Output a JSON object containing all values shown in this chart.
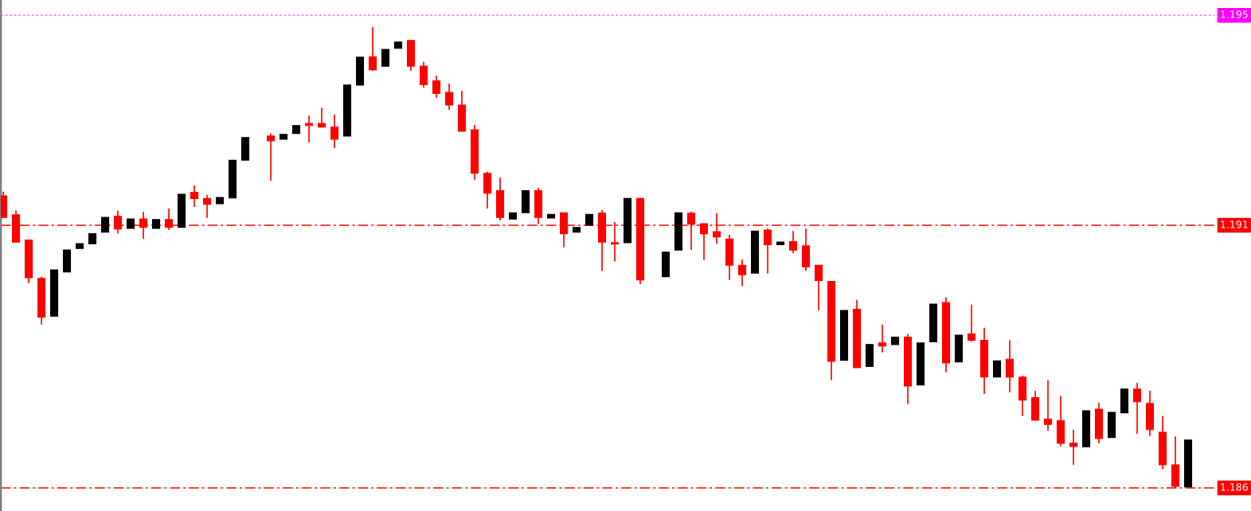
{
  "chart_data": {
    "type": "candlestick",
    "categories": [
      null,
      null,
      null,
      null,
      null,
      null,
      null,
      null,
      null,
      null,
      null,
      null,
      null,
      null,
      null,
      null,
      null,
      null,
      null,
      null,
      null,
      null,
      null,
      null,
      null,
      null,
      null,
      null,
      null,
      null,
      null,
      null,
      null,
      null,
      null,
      null,
      null,
      null,
      null,
      null,
      null,
      null,
      null,
      null,
      null,
      null,
      null,
      null,
      null,
      null,
      null,
      null,
      null,
      null,
      null,
      null,
      null,
      null,
      null,
      null,
      null,
      null,
      null,
      null,
      null,
      null,
      null,
      null,
      null,
      null,
      null,
      null,
      null,
      null,
      null,
      null,
      null,
      null,
      null,
      null,
      null,
      null,
      null,
      null,
      null,
      null,
      null,
      null,
      null,
      null,
      null,
      null,
      null,
      null
    ],
    "ohlc": [
      [
        1.19156,
        1.19164,
        1.19115,
        1.19115
      ],
      [
        1.1912,
        1.19128,
        1.19068,
        1.19068
      ],
      [
        1.19072,
        1.19073,
        1.1899,
        1.19
      ],
      [
        1.18999,
        1.19002,
        1.18911,
        1.18925
      ],
      [
        1.18927,
        1.19015,
        1.18927,
        1.19015
      ],
      [
        1.19011,
        1.19053,
        1.19011,
        1.19053
      ],
      [
        1.19056,
        1.19065,
        1.19056,
        1.19065
      ],
      [
        1.19065,
        1.19084,
        1.19065,
        1.19084
      ],
      [
        1.19087,
        1.19115,
        1.19087,
        1.19115
      ],
      [
        1.19117,
        1.19128,
        1.19084,
        1.19093
      ],
      [
        1.19094,
        1.19112,
        1.19094,
        1.19112
      ],
      [
        1.19112,
        1.19126,
        1.19074,
        1.19096
      ],
      [
        1.19094,
        1.19111,
        1.19094,
        1.19111
      ],
      [
        1.19111,
        1.19132,
        1.19091,
        1.19096
      ],
      [
        1.19096,
        1.19159,
        1.19096,
        1.19159
      ],
      [
        1.19163,
        1.19176,
        1.19135,
        1.19151
      ],
      [
        1.19151,
        1.19158,
        1.19114,
        1.1914
      ],
      [
        1.19141,
        1.19153,
        1.19141,
        1.19153
      ],
      [
        1.19152,
        1.19224,
        1.19152,
        1.19224
      ],
      [
        1.19224,
        1.19267,
        1.19224,
        1.19267
      ],
      null,
      [
        1.1927,
        1.19275,
        1.19185,
        1.19261
      ],
      [
        1.19264,
        1.19273,
        1.19264,
        1.19273
      ],
      [
        1.19275,
        1.1929,
        1.19275,
        1.1929
      ],
      [
        1.19294,
        1.19309,
        1.19258,
        1.1929
      ],
      [
        1.19294,
        1.19324,
        1.19287,
        1.19287
      ],
      [
        1.19287,
        1.19311,
        1.19247,
        1.19264
      ],
      [
        1.1927,
        1.19367,
        1.1927,
        1.19367
      ],
      [
        1.19367,
        1.1942,
        1.19367,
        1.1942
      ],
      [
        1.19421,
        1.19478,
        1.19394,
        1.19396
      ],
      [
        1.19403,
        1.19435,
        1.19403,
        1.19435
      ],
      [
        1.19437,
        1.19449,
        1.19437,
        1.19449
      ],
      [
        1.19452,
        1.19452,
        1.19394,
        1.19403
      ],
      [
        1.19403,
        1.19411,
        1.19362,
        1.19368
      ],
      [
        1.19375,
        1.19385,
        1.19343,
        1.19351
      ],
      [
        1.19353,
        1.1937,
        1.1932,
        1.19329
      ],
      [
        1.19329,
        1.19356,
        1.19279,
        1.19279
      ],
      [
        1.19282,
        1.19291,
        1.19187,
        1.19199
      ],
      [
        1.19199,
        1.19202,
        1.19132,
        1.19161
      ],
      [
        1.19166,
        1.19191,
        1.19109,
        1.19115
      ],
      [
        1.19112,
        1.19124,
        1.19112,
        1.19124
      ],
      [
        1.19124,
        1.19166,
        1.19124,
        1.19166
      ],
      [
        1.19166,
        1.19171,
        1.19102,
        1.19115
      ],
      [
        1.19114,
        1.19121,
        1.19114,
        1.19121
      ],
      [
        1.19124,
        1.19124,
        1.19058,
        1.19084
      ],
      [
        1.19087,
        1.19096,
        1.19087,
        1.19096
      ],
      [
        1.191,
        1.19121,
        1.191,
        1.19121
      ],
      [
        1.19123,
        1.19129,
        1.19013,
        1.19068
      ],
      [
        1.19067,
        1.19106,
        1.19031,
        1.19064
      ],
      [
        1.19067,
        1.19151,
        1.19067,
        1.19151
      ],
      [
        1.19151,
        1.19151,
        1.18988,
        1.18996
      ],
      null,
      [
        1.19002,
        1.19049,
        1.19002,
        1.19049
      ],
      [
        1.19053,
        1.19124,
        1.19053,
        1.19124
      ],
      [
        1.19123,
        1.19126,
        1.19053,
        1.19102
      ],
      [
        1.19103,
        1.19103,
        1.19034,
        1.19084
      ],
      [
        1.19088,
        1.19123,
        1.19065,
        1.19078
      ],
      [
        1.19074,
        1.19082,
        1.18996,
        1.19024
      ],
      [
        1.19024,
        1.19035,
        1.18984,
        1.19006
      ],
      [
        1.19009,
        1.19089,
        1.19009,
        1.19089
      ],
      [
        1.19091,
        1.19094,
        1.19008,
        1.19063
      ],
      [
        1.19063,
        1.19068,
        1.19063,
        1.19068
      ],
      [
        1.19069,
        1.19089,
        1.19047,
        1.19053
      ],
      [
        1.19061,
        1.19094,
        1.19013,
        1.19021
      ],
      [
        1.19024,
        1.19024,
        1.18938,
        1.18995
      ],
      [
        1.18993,
        1.18993,
        1.18805,
        1.18841
      ],
      [
        1.18843,
        1.18938,
        1.18843,
        1.18938
      ],
      [
        1.1894,
        1.18958,
        1.18829,
        1.18829
      ],
      [
        1.18831,
        1.18873,
        1.18831,
        1.18873
      ],
      [
        1.18876,
        1.18911,
        1.18858,
        1.1887
      ],
      [
        1.18873,
        1.18887,
        1.18873,
        1.18887
      ],
      [
        1.18887,
        1.18893,
        1.1876,
        1.18794
      ],
      [
        1.18796,
        1.18876,
        1.18796,
        1.18876
      ],
      [
        1.18878,
        1.1895,
        1.18878,
        1.1895
      ],
      [
        1.18953,
        1.18963,
        1.1882,
        1.18838
      ],
      [
        1.1884,
        1.18891,
        1.1884,
        1.18891
      ],
      [
        1.18893,
        1.18949,
        1.18879,
        1.18881
      ],
      [
        1.18881,
        1.18905,
        1.18779,
        1.18811
      ],
      [
        1.18811,
        1.18842,
        1.18811,
        1.18842
      ],
      [
        1.18845,
        1.18881,
        1.18782,
        1.18811
      ],
      [
        1.18811,
        1.18814,
        1.18737,
        1.18767
      ],
      [
        1.18772,
        1.18785,
        1.18729,
        1.18729
      ],
      [
        1.18731,
        1.18805,
        1.18709,
        1.18721
      ],
      [
        1.18728,
        1.18775,
        1.18679,
        1.18685
      ],
      [
        1.18685,
        1.18711,
        1.18644,
        1.18679
      ],
      [
        1.18678,
        1.18747,
        1.18678,
        1.18747
      ],
      [
        1.1875,
        1.18762,
        1.18685,
        1.18694
      ],
      [
        1.18696,
        1.18744,
        1.18696,
        1.18744
      ],
      [
        1.18743,
        1.18788,
        1.18743,
        1.18788
      ],
      [
        1.18788,
        1.188,
        1.18703,
        1.18764
      ],
      [
        1.18761,
        1.18785,
        1.18699,
        1.18711
      ],
      [
        1.18706,
        1.18737,
        1.18635,
        1.18644
      ],
      [
        1.18644,
        1.18698,
        1.18599,
        1.18603
      ],
      [
        1.18602,
        1.18691,
        1.18602,
        1.18691
      ]
    ],
    "colors": [
      "#ff0000",
      "#ff0000",
      "#ff0000",
      "#ff0000",
      "#000000",
      "#000000",
      "#000000",
      "#000000",
      "#000000",
      "#ff0000",
      "#000000",
      "#ff0000",
      "#000000",
      "#ff0000",
      "#000000",
      "#ff0000",
      "#ff0000",
      "#000000",
      "#000000",
      "#000000",
      null,
      "#ff0000",
      "#000000",
      "#000000",
      "#ff0000",
      "#ff0000",
      "#ff0000",
      "#000000",
      "#000000",
      "#ff0000",
      "#000000",
      "#000000",
      "#ff0000",
      "#ff0000",
      "#ff0000",
      "#ff0000",
      "#ff0000",
      "#ff0000",
      "#ff0000",
      "#ff0000",
      "#000000",
      "#000000",
      "#ff0000",
      "#000000",
      "#ff0000",
      "#000000",
      "#000000",
      "#ff0000",
      "#ff0000",
      "#000000",
      "#ff0000",
      null,
      "#000000",
      "#000000",
      "#ff0000",
      "#ff0000",
      "#ff0000",
      "#ff0000",
      "#ff0000",
      "#000000",
      "#ff0000",
      "#000000",
      "#ff0000",
      "#ff0000",
      "#ff0000",
      "#ff0000",
      "#000000",
      "#ff0000",
      "#000000",
      "#ff0000",
      "#000000",
      "#ff0000",
      "#000000",
      "#000000",
      "#ff0000",
      "#000000",
      "#ff0000",
      "#ff0000",
      "#000000",
      "#ff0000",
      "#ff0000",
      "#ff0000",
      "#ff0000",
      "#ff0000",
      "#ff0000",
      "#000000",
      "#ff0000",
      "#000000",
      "#000000",
      "#ff0000",
      "#ff0000",
      "#ff0000",
      "#ff0000",
      "#000000"
    ],
    "ylim": [
      1.18556,
      1.19529
    ],
    "ref_lines": [
      {
        "axis": "y",
        "value": 1.195,
        "label": "1.195",
        "color": "#ff00ff",
        "line_style": "dotted"
      },
      {
        "axis": "y",
        "value": 1.191,
        "label": "1.191",
        "color": "#ff0000",
        "line_style": "dashed"
      },
      {
        "axis": "y",
        "value": 1.186,
        "label": "1.186",
        "color": "#ff0000",
        "line_style": "dashed"
      }
    ]
  }
}
